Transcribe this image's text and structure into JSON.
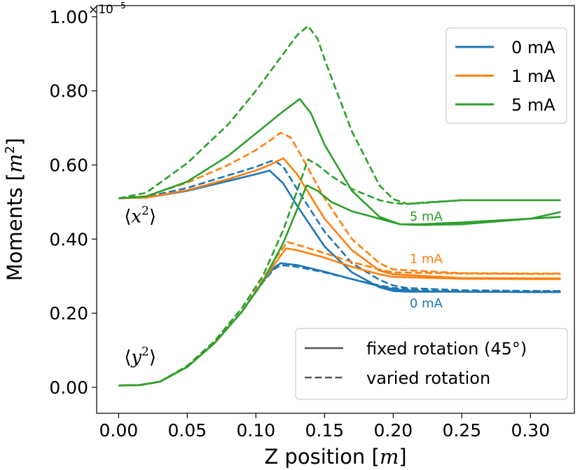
{
  "chart_data": {
    "type": "line",
    "xlabel_prefix": "Z position [",
    "xlabel_var": "m",
    "xlabel_suffix": "]",
    "ylabel": "Moments [m²]",
    "ylabel_prefix": "Moments [",
    "ylabel_var": "m",
    "ylabel_exp": "2",
    "ylabel_suffix": "]",
    "scale_note": "×10",
    "scale_exp": "−5",
    "xlim": [
      -0.016,
      0.332
    ],
    "ylim": [
      -0.07,
      1.03
    ],
    "xticks": [
      0.0,
      0.05,
      0.1,
      0.15,
      0.2,
      0.25,
      0.3
    ],
    "xtick_labels": [
      "0.00",
      "0.05",
      "0.10",
      "0.15",
      "0.20",
      "0.25",
      "0.30"
    ],
    "yticks": [
      0.0,
      0.2,
      0.4,
      0.6,
      0.8,
      1.0
    ],
    "ytick_labels": [
      "0.00",
      "0.20",
      "0.40",
      "0.60",
      "0.80",
      "1.00"
    ],
    "colors": {
      "0 mA": "#1f77b4",
      "1 mA": "#ff7f0e",
      "5 mA": "#2ca02c"
    },
    "legend_currents": [
      {
        "label": "0 mA",
        "color": "#1f77b4"
      },
      {
        "label": "1 mA",
        "color": "#ff7f0e"
      },
      {
        "label": "5 mA",
        "color": "#2ca02c"
      }
    ],
    "legend_styles": [
      {
        "label": "fixed rotation (45°)",
        "dash": "solid"
      },
      {
        "label": "varied rotation",
        "dash": "dashed"
      }
    ],
    "annotations": [
      {
        "text": "5 mA",
        "x": 0.212,
        "y": 0.45,
        "color": "#2ca02c"
      },
      {
        "text": "1 mA",
        "x": 0.212,
        "y": 0.335,
        "color": "#ff7f0e"
      },
      {
        "text": "0 mA",
        "x": 0.212,
        "y": 0.215,
        "color": "#1f77b4"
      }
    ],
    "moment_labels": [
      {
        "var": "x",
        "exp": "2",
        "x": 0.004,
        "y": 0.445
      },
      {
        "var": "y",
        "exp": "2",
        "x": 0.004,
        "y": 0.065
      }
    ],
    "series": [
      {
        "name": "x² 0 mA fixed",
        "current": "0 mA",
        "dash": "solid",
        "x": [
          0.0,
          0.02,
          0.05,
          0.08,
          0.1,
          0.11,
          0.12,
          0.13,
          0.15,
          0.17,
          0.19,
          0.2,
          0.21,
          0.25,
          0.3,
          0.322
        ],
        "y": [
          0.51,
          0.512,
          0.53,
          0.557,
          0.575,
          0.585,
          0.55,
          0.49,
          0.38,
          0.31,
          0.27,
          0.26,
          0.258,
          0.258,
          0.257,
          0.257
        ]
      },
      {
        "name": "x² 0 mA varied",
        "current": "0 mA",
        "dash": "dashed",
        "x": [
          0.0,
          0.02,
          0.05,
          0.08,
          0.1,
          0.113,
          0.12,
          0.13,
          0.15,
          0.17,
          0.19,
          0.2,
          0.21,
          0.25,
          0.3,
          0.322
        ],
        "y": [
          0.51,
          0.514,
          0.538,
          0.572,
          0.595,
          0.613,
          0.595,
          0.535,
          0.42,
          0.335,
          0.29,
          0.275,
          0.268,
          0.262,
          0.26,
          0.26
        ]
      },
      {
        "name": "x² 1 mA fixed",
        "current": "1 mA",
        "dash": "solid",
        "x": [
          0.0,
          0.02,
          0.05,
          0.08,
          0.1,
          0.11,
          0.12,
          0.13,
          0.15,
          0.17,
          0.19,
          0.2,
          0.25,
          0.3,
          0.322
        ],
        "y": [
          0.51,
          0.512,
          0.532,
          0.562,
          0.585,
          0.6,
          0.618,
          0.575,
          0.455,
          0.37,
          0.315,
          0.305,
          0.295,
          0.294,
          0.294
        ]
      },
      {
        "name": "x² 1 mA varied",
        "current": "1 mA",
        "dash": "dashed",
        "x": [
          0.0,
          0.02,
          0.05,
          0.08,
          0.1,
          0.11,
          0.118,
          0.125,
          0.13,
          0.15,
          0.17,
          0.19,
          0.2,
          0.25,
          0.3,
          0.322
        ],
        "y": [
          0.51,
          0.516,
          0.552,
          0.6,
          0.64,
          0.665,
          0.687,
          0.675,
          0.645,
          0.51,
          0.4,
          0.335,
          0.318,
          0.308,
          0.307,
          0.307
        ]
      },
      {
        "name": "x² 5 mA fixed",
        "current": "5 mA",
        "dash": "solid",
        "x": [
          0.0,
          0.02,
          0.05,
          0.08,
          0.1,
          0.12,
          0.132,
          0.14,
          0.15,
          0.17,
          0.19,
          0.205,
          0.22,
          0.25,
          0.3,
          0.322
        ],
        "y": [
          0.51,
          0.515,
          0.555,
          0.625,
          0.685,
          0.745,
          0.778,
          0.74,
          0.655,
          0.53,
          0.46,
          0.44,
          0.44,
          0.445,
          0.455,
          0.46
        ]
      },
      {
        "name": "x² 5 mA varied",
        "current": "5 mA",
        "dash": "dashed",
        "x": [
          0.0,
          0.02,
          0.05,
          0.08,
          0.1,
          0.12,
          0.13,
          0.138,
          0.145,
          0.15,
          0.17,
          0.19,
          0.2,
          0.21,
          0.22,
          0.25,
          0.3,
          0.322
        ],
        "y": [
          0.51,
          0.525,
          0.605,
          0.71,
          0.8,
          0.9,
          0.95,
          0.975,
          0.94,
          0.885,
          0.69,
          0.545,
          0.508,
          0.495,
          0.497,
          0.505,
          0.505,
          0.505
        ]
      },
      {
        "name": "y² 0 mA fixed",
        "current": "0 mA",
        "dash": "solid",
        "x": [
          0.0,
          0.015,
          0.03,
          0.05,
          0.07,
          0.09,
          0.105,
          0.113,
          0.118,
          0.13,
          0.15,
          0.17,
          0.19,
          0.2,
          0.22,
          0.25,
          0.3,
          0.322
        ],
        "y": [
          0.005,
          0.006,
          0.015,
          0.055,
          0.12,
          0.205,
          0.285,
          0.322,
          0.335,
          0.33,
          0.312,
          0.292,
          0.273,
          0.265,
          0.259,
          0.258,
          0.257,
          0.257
        ]
      },
      {
        "name": "y² 0 mA varied",
        "current": "0 mA",
        "dash": "dashed",
        "x": [
          0.0,
          0.015,
          0.03,
          0.05,
          0.07,
          0.09,
          0.105,
          0.113,
          0.118,
          0.13,
          0.15,
          0.17,
          0.19,
          0.2,
          0.22,
          0.25,
          0.3,
          0.322
        ],
        "y": [
          0.005,
          0.006,
          0.015,
          0.055,
          0.12,
          0.205,
          0.283,
          0.318,
          0.33,
          0.325,
          0.31,
          0.292,
          0.275,
          0.268,
          0.262,
          0.26,
          0.259,
          0.259
        ]
      },
      {
        "name": "y² 1 mA fixed",
        "current": "1 mA",
        "dash": "solid",
        "x": [
          0.0,
          0.015,
          0.03,
          0.05,
          0.07,
          0.09,
          0.105,
          0.115,
          0.122,
          0.13,
          0.15,
          0.17,
          0.19,
          0.2,
          0.25,
          0.3,
          0.322
        ],
        "y": [
          0.005,
          0.006,
          0.015,
          0.055,
          0.12,
          0.205,
          0.285,
          0.34,
          0.375,
          0.37,
          0.35,
          0.325,
          0.305,
          0.298,
          0.293,
          0.292,
          0.292
        ]
      },
      {
        "name": "y² 1 mA varied",
        "current": "1 mA",
        "dash": "dashed",
        "x": [
          0.0,
          0.015,
          0.03,
          0.05,
          0.07,
          0.09,
          0.105,
          0.115,
          0.123,
          0.13,
          0.15,
          0.17,
          0.19,
          0.2,
          0.25,
          0.3,
          0.322
        ],
        "y": [
          0.005,
          0.006,
          0.015,
          0.055,
          0.12,
          0.205,
          0.29,
          0.352,
          0.392,
          0.385,
          0.362,
          0.338,
          0.318,
          0.31,
          0.307,
          0.306,
          0.306
        ]
      },
      {
        "name": "y² 5 mA fixed",
        "current": "5 mA",
        "dash": "solid",
        "x": [
          0.0,
          0.015,
          0.03,
          0.05,
          0.07,
          0.09,
          0.105,
          0.12,
          0.13,
          0.137,
          0.145,
          0.155,
          0.17,
          0.19,
          0.205,
          0.22,
          0.25,
          0.3,
          0.322
        ],
        "y": [
          0.005,
          0.006,
          0.015,
          0.055,
          0.12,
          0.205,
          0.285,
          0.39,
          0.48,
          0.545,
          0.53,
          0.5,
          0.475,
          0.455,
          0.44,
          0.438,
          0.44,
          0.455,
          0.473
        ]
      },
      {
        "name": "y² 5 mA varied",
        "current": "5 mA",
        "dash": "dashed",
        "x": [
          0.0,
          0.015,
          0.03,
          0.05,
          0.07,
          0.09,
          0.105,
          0.12,
          0.13,
          0.138,
          0.145,
          0.155,
          0.17,
          0.19,
          0.2,
          0.21,
          0.22,
          0.25,
          0.3,
          0.322
        ],
        "y": [
          0.005,
          0.006,
          0.015,
          0.058,
          0.125,
          0.215,
          0.3,
          0.425,
          0.53,
          0.615,
          0.6,
          0.57,
          0.535,
          0.505,
          0.497,
          0.495,
          0.498,
          0.505,
          0.505,
          0.505
        ]
      }
    ]
  }
}
